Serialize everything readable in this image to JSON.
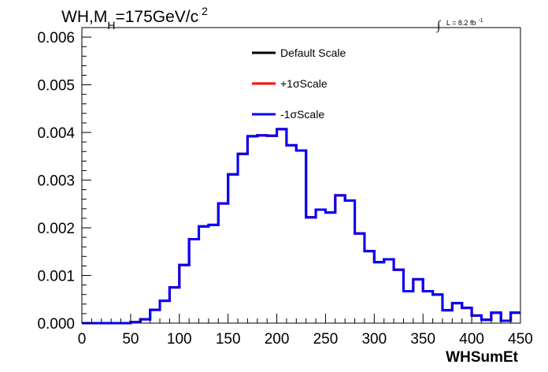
{
  "chart_data": {
    "type": "line",
    "title": "WH,M",
    "title_subscript": "H",
    "title_rest": "=175GeV/c",
    "title_superscript": "2",
    "lumi_integral": "∫",
    "lumi_text": "L = 8.2 fb",
    "lumi_superscript": "-1",
    "xlabel": "WHSumEt",
    "ylabel": "",
    "xlim": [
      0,
      450
    ],
    "ylim": [
      0,
      0.0062
    ],
    "bin_width": 10,
    "x_ticks": [
      "0",
      "50",
      "100",
      "150",
      "200",
      "250",
      "300",
      "350",
      "400",
      "450"
    ],
    "x_tick_values": [
      0,
      50,
      100,
      150,
      200,
      250,
      300,
      350,
      400,
      450
    ],
    "y_ticks": [
      "0.000",
      "0.001",
      "0.002",
      "0.003",
      "0.004",
      "0.005",
      "0.006"
    ],
    "y_tick_values": [
      0,
      0.001,
      0.002,
      0.003,
      0.004,
      0.005,
      0.006
    ],
    "legend_position": "top-center",
    "grid": false,
    "series": [
      {
        "name": "Default Scale",
        "color": "#000000",
        "values": [
          0,
          0,
          0,
          0,
          0,
          2e-05,
          8e-05,
          0.00028,
          0.00047,
          0.00075,
          0.00122,
          0.00176,
          0.00203,
          0.00206,
          0.00251,
          0.00312,
          0.00355,
          0.00392,
          0.00394,
          0.00393,
          0.00407,
          0.00373,
          0.00362,
          0.00222,
          0.00238,
          0.00232,
          0.00268,
          0.00257,
          0.00188,
          0.00151,
          0.00128,
          0.00134,
          0.00112,
          0.00067,
          0.00092,
          0.00067,
          0.0006,
          0.00027,
          0.00042,
          0.00032,
          0.00016,
          7e-05,
          0.00022,
          5e-05,
          0.00022,
          5e-05,
          0.00016,
          0.00016,
          8e-05,
          1e-05,
          4e-05,
          4e-05
        ]
      },
      {
        "name": "+1σScale",
        "color": "#ff0000",
        "values": [
          0,
          0,
          0,
          0,
          0,
          2e-05,
          8e-05,
          0.00028,
          0.00047,
          0.00075,
          0.00122,
          0.00176,
          0.00203,
          0.00206,
          0.00251,
          0.00312,
          0.00355,
          0.00392,
          0.00394,
          0.00393,
          0.00407,
          0.00373,
          0.00362,
          0.00222,
          0.00238,
          0.00232,
          0.00268,
          0.00257,
          0.00188,
          0.00151,
          0.00128,
          0.00134,
          0.00112,
          0.00067,
          0.00092,
          0.00067,
          0.0006,
          0.00027,
          0.00042,
          0.00032,
          0.00016,
          7e-05,
          0.00022,
          5e-05,
          0.00022,
          5e-05,
          0.00016,
          0.00016,
          8e-05,
          1e-05,
          4e-05,
          4e-05
        ]
      },
      {
        "name": "-1σScale",
        "color": "#0000ff",
        "values": [
          0,
          0,
          0,
          0,
          0,
          2e-05,
          8e-05,
          0.00028,
          0.00047,
          0.00075,
          0.00122,
          0.00176,
          0.00203,
          0.00206,
          0.00251,
          0.00312,
          0.00355,
          0.00392,
          0.00394,
          0.00393,
          0.00407,
          0.00373,
          0.00362,
          0.00222,
          0.00238,
          0.00232,
          0.00268,
          0.00257,
          0.00188,
          0.00151,
          0.00128,
          0.00134,
          0.00112,
          0.00067,
          0.00092,
          0.00067,
          0.0006,
          0.00027,
          0.00042,
          0.00032,
          0.00016,
          7e-05,
          0.00022,
          5e-05,
          0.00022,
          5e-05,
          0.00016,
          0.00016,
          8e-05,
          1e-05,
          4e-05,
          4e-05
        ]
      }
    ]
  }
}
